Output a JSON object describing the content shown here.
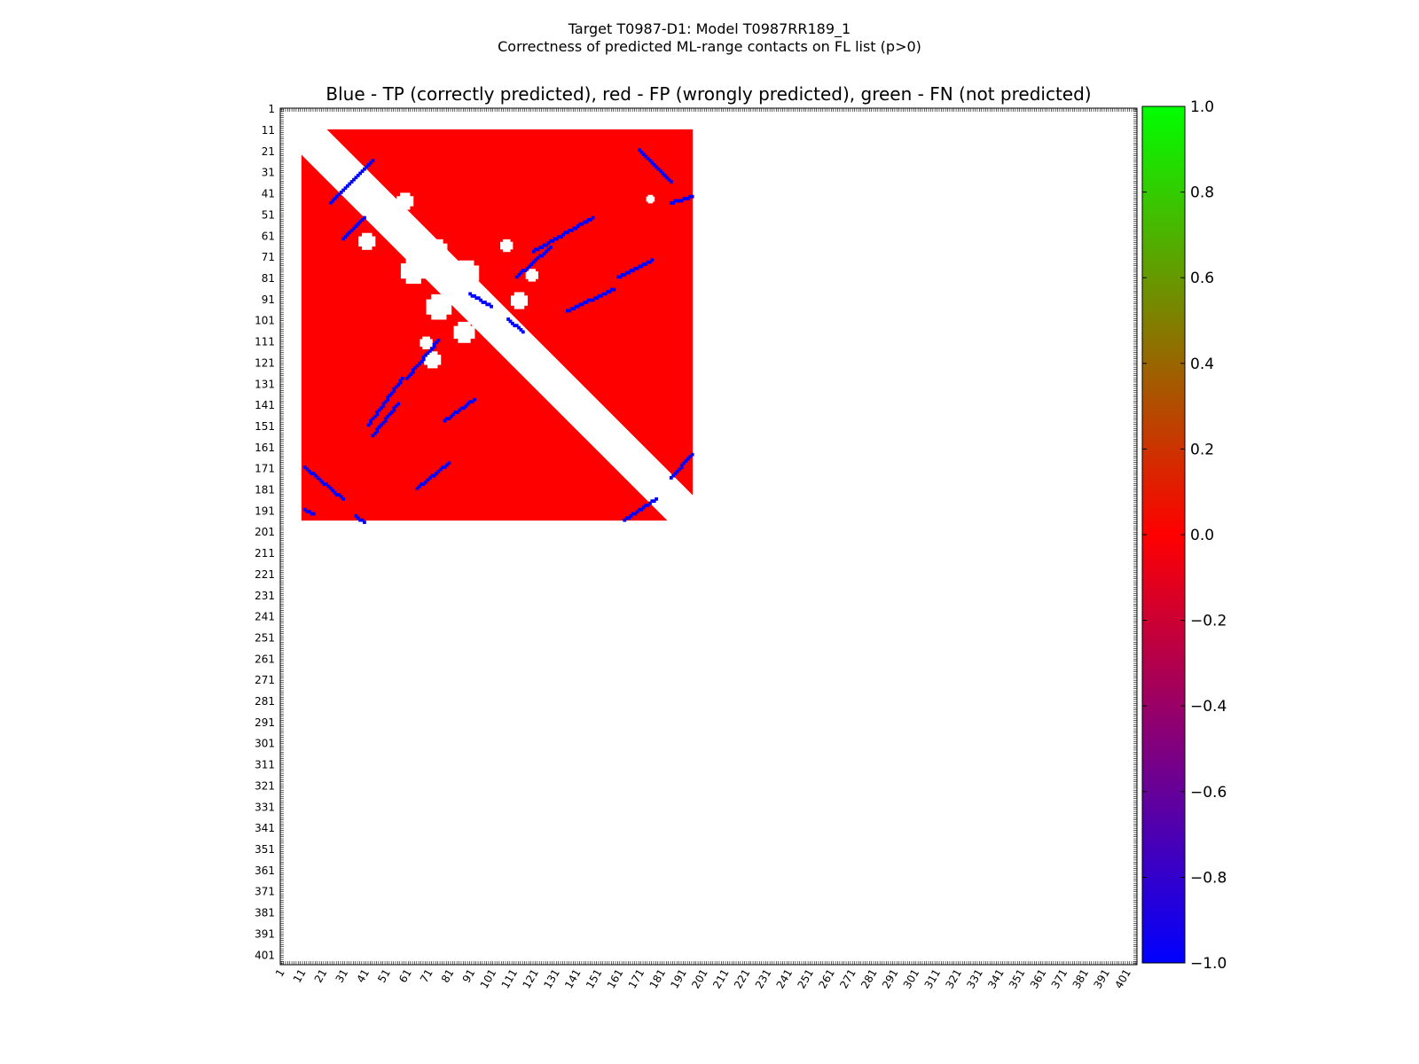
{
  "suptitle_line1": "Target T0987-D1: Model T0987RR189_1",
  "suptitle_line2": "Correctness of predicted ML-range contacts on FL list (p>0)",
  "chart_data": {
    "type": "heatmap",
    "title": "Blue - TP (correctly predicted), red - FP (wrongly predicted), green - FN (not predicted)",
    "xlabel": "",
    "ylabel": "",
    "x_range": [
      1,
      405
    ],
    "y_range": [
      1,
      405
    ],
    "x_tick_labels": [
      "1",
      "11",
      "21",
      "31",
      "41",
      "51",
      "61",
      "71",
      "81",
      "91",
      "101",
      "111",
      "121",
      "131",
      "141",
      "151",
      "161",
      "171",
      "181",
      "191",
      "201",
      "211",
      "221",
      "231",
      "241",
      "251",
      "261",
      "271",
      "281",
      "291",
      "301",
      "311",
      "321",
      "331",
      "341",
      "351",
      "361",
      "371",
      "381",
      "391",
      "401"
    ],
    "y_tick_labels": [
      "1",
      "11",
      "21",
      "31",
      "41",
      "51",
      "61",
      "71",
      "81",
      "91",
      "101",
      "111",
      "121",
      "131",
      "141",
      "151",
      "161",
      "171",
      "181",
      "191",
      "201",
      "211",
      "221",
      "231",
      "241",
      "251",
      "261",
      "271",
      "281",
      "291",
      "301",
      "311",
      "321",
      "331",
      "341",
      "351",
      "361",
      "371",
      "381",
      "391",
      "401"
    ],
    "residue_block": [
      11,
      196
    ],
    "diagonal_exclusion": 12,
    "fp_value": 0.0,
    "tp_value": -1.0,
    "fn_value": 1.0,
    "tp_bands": [
      {
        "x": [
          24,
          44
        ],
        "y": [
          45,
          25
        ]
      },
      {
        "x": [
          30,
          40
        ],
        "y": [
          62,
          52
        ]
      },
      {
        "x": [
          44,
          56
        ],
        "y": [
          155,
          140
        ]
      },
      {
        "x": [
          42,
          58
        ],
        "y": [
          150,
          128
        ]
      },
      {
        "x": [
          60,
          75
        ],
        "y": [
          128,
          110
        ]
      },
      {
        "x": [
          78,
          92
        ],
        "y": [
          148,
          138
        ]
      },
      {
        "x": [
          65,
          80
        ],
        "y": [
          180,
          168
        ]
      },
      {
        "x": [
          120,
          148
        ],
        "y": [
          68,
          52
        ]
      },
      {
        "x": [
          112,
          128
        ],
        "y": [
          80,
          66
        ]
      },
      {
        "x": [
          136,
          158
        ],
        "y": [
          96,
          86
        ]
      },
      {
        "x": [
          160,
          176
        ],
        "y": [
          80,
          72
        ]
      },
      {
        "x": [
          170,
          185
        ],
        "y": [
          20,
          35
        ]
      },
      {
        "x": [
          185,
          195
        ],
        "y": [
          45,
          42
        ]
      },
      {
        "x": [
          185,
          195
        ],
        "y": [
          175,
          164
        ]
      },
      {
        "x": [
          163,
          178
        ],
        "y": [
          195,
          185
        ]
      },
      {
        "x": [
          12,
          30
        ],
        "y": [
          170,
          185
        ]
      },
      {
        "x": [
          12,
          16
        ],
        "y": [
          190,
          192
        ]
      },
      {
        "x": [
          36,
          40
        ],
        "y": [
          193,
          196
        ]
      },
      {
        "x": [
          108,
          115
        ],
        "y": [
          100,
          106
        ]
      },
      {
        "x": [
          90,
          100
        ],
        "y": [
          88,
          94
        ]
      }
    ],
    "white_blobs": [
      {
        "x": 60,
        "y": 45,
        "r": 4
      },
      {
        "x": 42,
        "y": 64,
        "r": 4
      },
      {
        "x": 75,
        "y": 68,
        "r": 5
      },
      {
        "x": 64,
        "y": 78,
        "r": 6
      },
      {
        "x": 89,
        "y": 79,
        "r": 6
      },
      {
        "x": 76,
        "y": 95,
        "r": 6
      },
      {
        "x": 88,
        "y": 107,
        "r": 5
      },
      {
        "x": 114,
        "y": 92,
        "r": 4
      },
      {
        "x": 73,
        "y": 120,
        "r": 4
      },
      {
        "x": 70,
        "y": 112,
        "r": 3
      },
      {
        "x": 108,
        "y": 66,
        "r": 3
      },
      {
        "x": 120,
        "y": 80,
        "r": 3
      },
      {
        "x": 176,
        "y": 44,
        "r": 2
      }
    ],
    "colorbar": {
      "min": -1.0,
      "max": 1.0,
      "ticks": [
        "1.0",
        "0.8",
        "0.6",
        "0.4",
        "0.2",
        "0.0",
        "−0.2",
        "−0.4",
        "−0.6",
        "−0.8",
        "−1.0"
      ],
      "colors": [
        "#0000ff",
        "#ff0000",
        "#00ff00"
      ]
    }
  }
}
